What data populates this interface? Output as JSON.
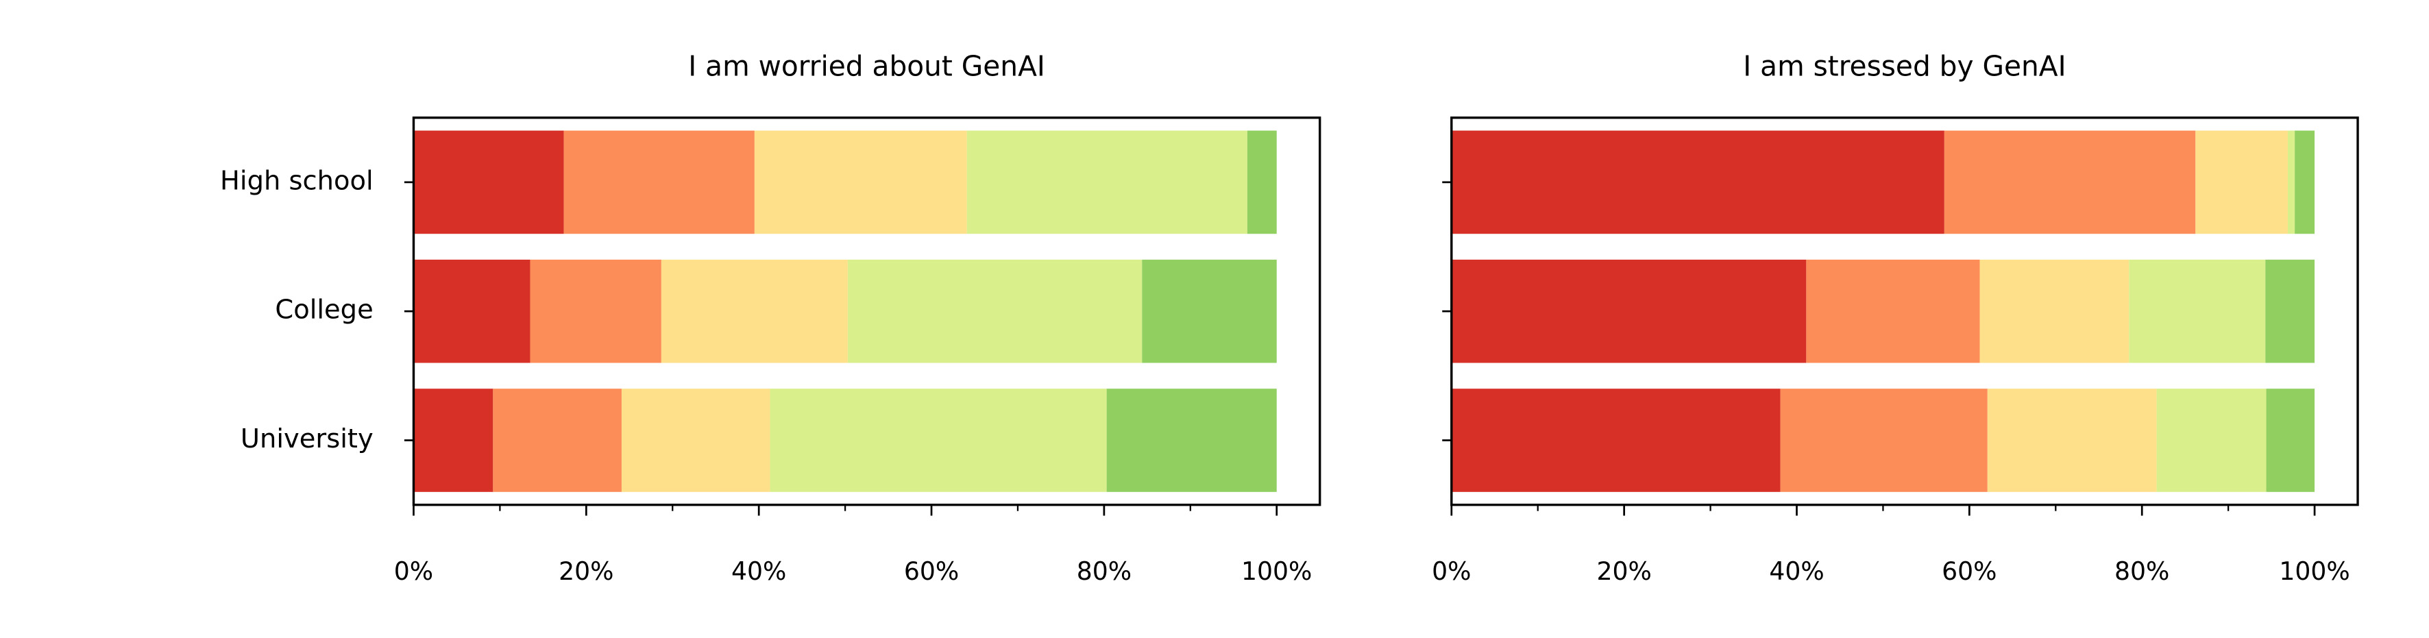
{
  "chart_data": [
    {
      "type": "barh",
      "stacked": true,
      "title": "I am worried about GenAI",
      "categories": [
        "High school",
        "College",
        "University"
      ],
      "series": [
        {
          "color": "#d73027",
          "values": [
            17.4,
            13.5,
            9.2
          ]
        },
        {
          "color": "#fc8d59",
          "values": [
            22.1,
            15.2,
            14.9
          ]
        },
        {
          "color": "#fee08b",
          "values": [
            24.6,
            21.6,
            17.2
          ]
        },
        {
          "color": "#d9ef8b",
          "values": [
            32.5,
            34.1,
            39.0
          ]
        },
        {
          "color": "#91cf60",
          "values": [
            3.4,
            15.6,
            19.7
          ]
        }
      ],
      "xlim": [
        0,
        105
      ],
      "xticks": [
        {
          "value": 0,
          "label": "0%"
        },
        {
          "value": 20,
          "label": "20%"
        },
        {
          "value": 40,
          "label": "40%"
        },
        {
          "value": 60,
          "label": "60%"
        },
        {
          "value": 80,
          "label": "80%"
        },
        {
          "value": 100,
          "label": "100%"
        }
      ],
      "xminorticks": [
        10,
        30,
        50,
        70,
        90
      ]
    },
    {
      "type": "barh",
      "stacked": true,
      "title": "I am stressed by GenAI",
      "series": [
        {
          "color": "#d73027",
          "values": [
            57.1,
            41.1,
            38.1
          ]
        },
        {
          "color": "#fc8d59",
          "values": [
            29.1,
            20.1,
            24.0
          ]
        },
        {
          "color": "#fee08b",
          "values": [
            10.7,
            17.3,
            19.6
          ]
        },
        {
          "color": "#d9ef8b",
          "values": [
            0.8,
            15.8,
            12.7
          ]
        },
        {
          "color": "#91cf60",
          "values": [
            2.3,
            5.7,
            5.6
          ]
        }
      ],
      "xlim": [
        0,
        105
      ],
      "xticks": [
        {
          "value": 0,
          "label": "0%"
        },
        {
          "value": 20,
          "label": "20%"
        },
        {
          "value": 40,
          "label": "40%"
        },
        {
          "value": 60,
          "label": "60%"
        },
        {
          "value": 80,
          "label": "80%"
        },
        {
          "value": 100,
          "label": "100%"
        }
      ],
      "xminorticks": [
        10,
        30,
        50,
        70,
        90
      ]
    }
  ]
}
